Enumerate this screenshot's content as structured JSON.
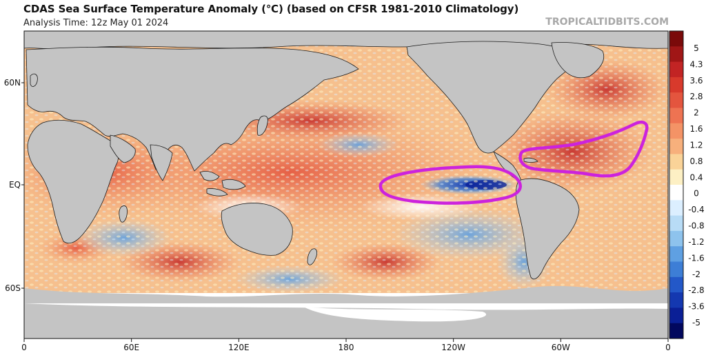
{
  "header": {
    "title": "CDAS Sea Surface Temperature Anomaly (℃) (based on CFSR 1981-2010 Climatology)",
    "analysis_time": "Analysis Time: 12z May 01 2024",
    "credit": "TROPICALTIDBITS.COM"
  },
  "axes": {
    "lat_labels": [
      "60N",
      "EQ",
      "60S"
    ],
    "lon_labels": [
      "0",
      "60E",
      "120E",
      "180",
      "120W",
      "60W",
      "0"
    ]
  },
  "colorbar": {
    "labels": [
      "5",
      "4.3",
      "3.6",
      "2.8",
      "2",
      "1.6",
      "1.2",
      "0.8",
      "0.4",
      "0",
      "-0.4",
      "-0.8",
      "-1.2",
      "-1.6",
      "-2",
      "-2.8",
      "-3.6",
      "-5"
    ],
    "colors": [
      "#7a0a0a",
      "#a01616",
      "#c22424",
      "#d83a2c",
      "#e4553e",
      "#ee7352",
      "#f49366",
      "#f7b07c",
      "#fad398",
      "#fdf0c4",
      "#ffffff",
      "#dcefff",
      "#b8dcf6",
      "#8ec3ed",
      "#5fa0e2",
      "#3d7ed6",
      "#2358c8",
      "#1438b0",
      "#0a1f96",
      "#02085e"
    ]
  },
  "annotations": [
    {
      "name": "eastern-pacific-cold-tongue",
      "label": "",
      "color": "#cc22dd"
    },
    {
      "name": "tropical-atlantic-warm-region",
      "label": "",
      "color": "#cc22dd"
    }
  ],
  "theme": {
    "land": "#c4c4c4",
    "coast": "#1a1a1a",
    "ice": "#ffffff"
  }
}
